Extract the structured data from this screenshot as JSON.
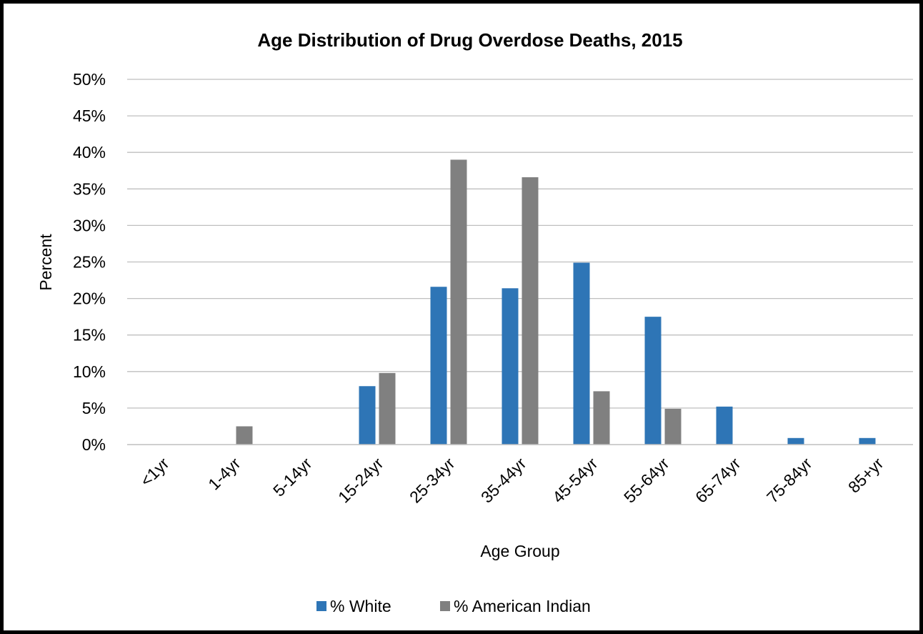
{
  "chart_data": {
    "type": "bar",
    "title": "Age Distribution of Drug Overdose Deaths, 2015",
    "xlabel": "Age Group",
    "ylabel": "Percent",
    "ylim": [
      0,
      50
    ],
    "yticks": [
      "0%",
      "5%",
      "10%",
      "15%",
      "20%",
      "25%",
      "30%",
      "35%",
      "40%",
      "45%",
      "50%"
    ],
    "grid": true,
    "legend_position": "bottom",
    "categories": [
      "<1yr",
      "1-4yr",
      "5-14yr",
      "15-24yr",
      "25-34yr",
      "35-44yr",
      "45-54yr",
      "55-64yr",
      "65-74yr",
      "75-84yr",
      "85+yr"
    ],
    "series": [
      {
        "name": "% White",
        "color": "#2E75B6",
        "values": [
          0,
          0,
          0,
          8.0,
          21.6,
          21.4,
          24.9,
          17.5,
          5.2,
          0.9,
          0.9
        ]
      },
      {
        "name": "% American Indian",
        "color": "#808080",
        "values": [
          0,
          2.5,
          0,
          9.8,
          39.0,
          36.6,
          7.3,
          4.9,
          0,
          0,
          0
        ]
      }
    ]
  }
}
